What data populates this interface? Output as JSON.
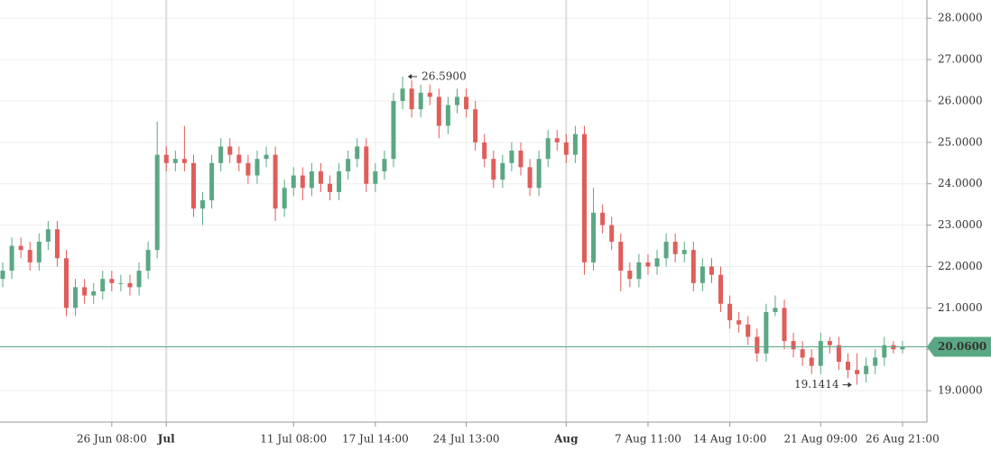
{
  "chart_data": {
    "type": "candlestick",
    "categories": [
      null,
      null,
      null,
      null,
      null,
      null,
      null,
      null,
      null,
      null,
      null,
      null,
      "26 Jun 08:00",
      null,
      null,
      null,
      null,
      null,
      "Jul",
      null,
      null,
      null,
      null,
      null,
      null,
      null,
      null,
      null,
      null,
      null,
      null,
      null,
      "11 Jul 08:00",
      null,
      null,
      null,
      null,
      null,
      null,
      null,
      null,
      "17 Jul 14:00",
      null,
      null,
      null,
      null,
      null,
      null,
      null,
      null,
      null,
      "24 Jul 13:00",
      null,
      null,
      null,
      null,
      null,
      null,
      null,
      null,
      null,
      null,
      "Aug",
      null,
      null,
      null,
      null,
      null,
      null,
      null,
      null,
      "7 Aug 11:00",
      null,
      null,
      null,
      null,
      null,
      null,
      null,
      null,
      "14 Aug 10:00",
      null,
      null,
      null,
      null,
      null,
      null,
      null,
      null,
      null,
      "21 Aug 09:00",
      null,
      null,
      null,
      null,
      null,
      null,
      null,
      null,
      "26 Aug 21:00"
    ],
    "open": [
      21.7,
      21.9,
      22.5,
      22.4,
      22.1,
      22.6,
      22.9,
      22.2,
      21.0,
      21.5,
      21.3,
      21.4,
      21.7,
      21.6,
      21.6,
      21.5,
      21.9,
      22.4,
      24.7,
      24.5,
      24.6,
      24.5,
      23.4,
      23.6,
      24.5,
      24.9,
      24.7,
      24.5,
      24.2,
      24.6,
      24.7,
      23.4,
      23.9,
      24.2,
      23.9,
      24.3,
      24.0,
      23.8,
      24.3,
      24.6,
      24.9,
      24.0,
      24.3,
      24.6,
      26.0,
      26.3,
      25.8,
      26.2,
      26.1,
      25.4,
      25.9,
      26.1,
      25.8,
      25.0,
      24.6,
      24.1,
      24.5,
      24.8,
      24.4,
      23.9,
      24.6,
      25.1,
      25.0,
      24.7,
      25.2,
      22.1,
      23.3,
      23.0,
      22.6,
      21.9,
      21.7,
      22.1,
      22.0,
      22.2,
      22.6,
      22.3,
      22.4,
      21.6,
      22.0,
      21.8,
      21.1,
      20.7,
      20.6,
      20.3,
      19.9,
      20.9,
      21.0,
      20.2,
      20.0,
      19.8,
      19.6,
      20.2,
      20.1,
      19.7,
      19.5,
      19.4,
      19.6,
      19.8,
      20.1,
      20.0
    ],
    "high": [
      22.1,
      22.7,
      22.7,
      22.6,
      22.8,
      23.1,
      23.1,
      22.4,
      21.7,
      21.7,
      21.6,
      21.9,
      21.9,
      21.8,
      21.8,
      22.1,
      22.6,
      25.5,
      24.9,
      24.8,
      25.4,
      24.7,
      23.8,
      24.7,
      25.1,
      25.1,
      24.9,
      24.7,
      24.8,
      24.9,
      24.9,
      24.1,
      24.4,
      24.4,
      24.5,
      24.5,
      24.2,
      24.5,
      24.8,
      25.1,
      25.1,
      24.5,
      24.8,
      26.2,
      26.59,
      26.5,
      26.4,
      26.4,
      26.3,
      26.1,
      26.3,
      26.3,
      26.0,
      25.2,
      24.8,
      24.7,
      25.0,
      25.0,
      24.6,
      24.8,
      25.3,
      25.3,
      25.2,
      25.4,
      25.4,
      23.9,
      23.5,
      23.2,
      22.8,
      22.1,
      22.3,
      22.3,
      22.4,
      22.8,
      22.8,
      22.6,
      22.6,
      22.2,
      22.2,
      22.0,
      21.3,
      20.9,
      20.8,
      20.5,
      21.1,
      21.3,
      21.2,
      20.4,
      20.2,
      20.0,
      20.4,
      20.3,
      20.3,
      19.9,
      19.9,
      19.8,
      20.0,
      20.3,
      20.2,
      20.2
    ],
    "low": [
      21.5,
      21.7,
      22.2,
      21.9,
      21.9,
      22.4,
      22.0,
      20.8,
      20.8,
      21.1,
      21.1,
      21.2,
      21.4,
      21.4,
      21.3,
      21.3,
      21.7,
      22.2,
      24.3,
      24.3,
      24.3,
      23.2,
      23.0,
      23.4,
      24.3,
      24.5,
      24.3,
      24.0,
      24.0,
      24.4,
      23.1,
      23.2,
      23.7,
      23.6,
      23.7,
      23.8,
      23.6,
      23.6,
      24.1,
      24.4,
      23.8,
      23.8,
      24.1,
      24.4,
      25.8,
      25.6,
      25.6,
      25.9,
      25.1,
      25.2,
      25.7,
      25.6,
      24.8,
      24.4,
      23.9,
      23.9,
      24.3,
      24.2,
      23.7,
      23.7,
      24.4,
      24.8,
      24.5,
      24.5,
      21.8,
      21.9,
      22.8,
      22.4,
      21.4,
      21.5,
      21.5,
      21.8,
      21.8,
      22.0,
      22.1,
      22.1,
      21.4,
      21.4,
      21.6,
      20.9,
      20.5,
      20.4,
      20.1,
      19.7,
      19.7,
      20.8,
      20.0,
      19.8,
      19.6,
      19.4,
      19.4,
      19.9,
      19.5,
      19.3,
      19.1414,
      19.2,
      19.4,
      19.6,
      19.9,
      19.9
    ],
    "close": [
      21.9,
      22.5,
      22.4,
      22.1,
      22.6,
      22.9,
      22.2,
      21.0,
      21.5,
      21.3,
      21.4,
      21.7,
      21.6,
      21.6,
      21.5,
      21.9,
      22.4,
      24.7,
      24.5,
      24.6,
      24.5,
      23.4,
      23.6,
      24.5,
      24.9,
      24.7,
      24.5,
      24.2,
      24.6,
      24.7,
      23.4,
      23.9,
      24.2,
      23.9,
      24.3,
      24.0,
      23.8,
      24.3,
      24.6,
      24.9,
      24.0,
      24.3,
      24.6,
      26.0,
      26.3,
      25.8,
      26.2,
      26.1,
      25.4,
      25.9,
      26.1,
      25.8,
      25.0,
      24.6,
      24.1,
      24.5,
      24.8,
      24.4,
      23.9,
      24.6,
      25.1,
      25.0,
      24.7,
      25.2,
      22.1,
      23.3,
      23.0,
      22.6,
      21.9,
      21.7,
      22.1,
      22.0,
      22.2,
      22.6,
      22.3,
      22.4,
      21.6,
      22.0,
      21.8,
      21.1,
      20.7,
      20.6,
      20.3,
      19.9,
      20.9,
      21.0,
      20.2,
      20.0,
      19.8,
      19.6,
      20.2,
      20.1,
      19.7,
      19.5,
      19.4,
      19.6,
      19.8,
      20.1,
      20.0,
      20.06
    ],
    "up_color": "#5aa883",
    "down_color": "#e05d5a",
    "high_label": "26.5900",
    "low_label": "19.1414",
    "last_price": {
      "value": 20.06,
      "label": "20.0600"
    },
    "last_price_color": "#5aa883",
    "ylim": [
      18.24,
      28.44
    ],
    "yticks": [
      {
        "value": 19,
        "label": "19.0000"
      },
      {
        "value": 20,
        "label": "20.0000"
      },
      {
        "value": 21,
        "label": "21.0000"
      },
      {
        "value": 22,
        "label": "22.0000"
      },
      {
        "value": 23,
        "label": "23.0000"
      },
      {
        "value": 24,
        "label": "24.0000"
      },
      {
        "value": 25,
        "label": "25.0000"
      },
      {
        "value": 26,
        "label": "26.0000"
      },
      {
        "value": 27,
        "label": "27.0000"
      },
      {
        "value": 28,
        "label": "28.0000"
      }
    ],
    "grid": true
  }
}
